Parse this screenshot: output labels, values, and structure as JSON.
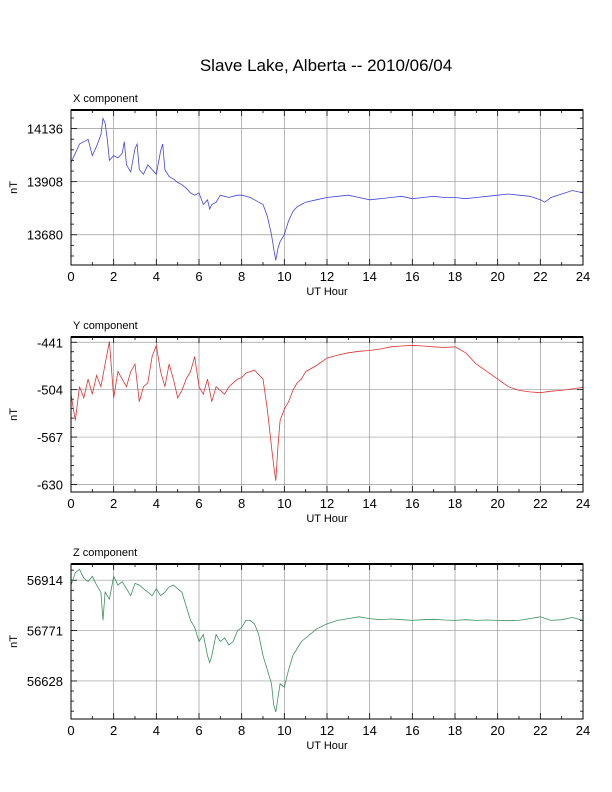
{
  "title": "Slave Lake, Alberta -- 2010/06/04",
  "chart_data": [
    {
      "type": "line",
      "title": "X component",
      "xlabel": "UT Hour",
      "ylabel": "nT",
      "xlim": [
        0,
        24
      ],
      "ylim": [
        13550,
        14216
      ],
      "xticks": [
        0,
        2,
        4,
        6,
        8,
        10,
        12,
        14,
        16,
        18,
        20,
        22,
        24
      ],
      "yticks": [
        13680,
        13908,
        14136
      ],
      "color": "#4444dd",
      "series": [
        {
          "x": [
            0,
            0.2,
            0.4,
            0.6,
            0.8,
            1.0,
            1.2,
            1.4,
            1.5,
            1.6,
            1.7,
            1.8,
            2.0,
            2.2,
            2.4,
            2.5,
            2.6,
            2.8,
            3.0,
            3.1,
            3.2,
            3.4,
            3.6,
            3.8,
            4.0,
            4.2,
            4.3,
            4.4,
            4.6,
            4.8,
            5.0,
            5.2,
            5.4,
            5.6,
            5.8,
            6.0,
            6.2,
            6.4,
            6.5,
            6.6,
            6.8,
            7.0,
            7.2,
            7.4,
            7.6,
            7.8,
            8.0,
            8.2,
            8.4,
            8.6,
            8.8,
            9.0,
            9.2,
            9.4,
            9.5,
            9.6,
            9.7,
            9.8,
            10.0,
            10.2,
            10.4,
            10.6,
            10.8,
            11.0,
            11.5,
            12.0,
            12.5,
            13.0,
            13.5,
            14.0,
            14.5,
            15.0,
            15.5,
            16.0,
            16.5,
            17.0,
            17.5,
            18.0,
            18.5,
            19.0,
            19.5,
            20.0,
            20.5,
            21.0,
            21.5,
            22.0,
            22.2,
            22.5,
            23.0,
            23.5,
            24.0
          ],
          "values": [
            13990,
            14030,
            14070,
            14080,
            14090,
            14020,
            14060,
            14110,
            14180,
            14160,
            14090,
            14000,
            14020,
            14010,
            14030,
            14080,
            13980,
            13950,
            14050,
            14070,
            13960,
            13940,
            13980,
            13960,
            13940,
            14040,
            14070,
            13960,
            13930,
            13920,
            13905,
            13895,
            13880,
            13860,
            13850,
            13860,
            13810,
            13830,
            13790,
            13810,
            13820,
            13850,
            13845,
            13840,
            13845,
            13850,
            13850,
            13845,
            13840,
            13830,
            13820,
            13810,
            13760,
            13680,
            13620,
            13570,
            13620,
            13650,
            13680,
            13740,
            13780,
            13800,
            13810,
            13820,
            13830,
            13840,
            13845,
            13850,
            13840,
            13830,
            13835,
            13840,
            13845,
            13835,
            13840,
            13845,
            13840,
            13840,
            13835,
            13840,
            13845,
            13850,
            13855,
            13850,
            13845,
            13830,
            13820,
            13840,
            13855,
            13870,
            13860
          ]
        }
      ]
    },
    {
      "type": "line",
      "title": "Y component",
      "xlabel": "UT Hour",
      "ylabel": "nT",
      "xlim": [
        0,
        24
      ],
      "ylim": [
        -640,
        -434
      ],
      "xticks": [
        0,
        2,
        4,
        6,
        8,
        10,
        12,
        14,
        16,
        18,
        20,
        22,
        24
      ],
      "yticks": [
        -630,
        -567,
        -504,
        -441
      ],
      "color": "#dd3333",
      "series": [
        {
          "x": [
            0,
            0.2,
            0.4,
            0.6,
            0.8,
            1.0,
            1.2,
            1.4,
            1.6,
            1.8,
            2.0,
            2.2,
            2.4,
            2.6,
            2.8,
            3.0,
            3.2,
            3.4,
            3.6,
            3.8,
            4.0,
            4.2,
            4.4,
            4.6,
            4.8,
            5.0,
            5.2,
            5.4,
            5.6,
            5.8,
            6.0,
            6.2,
            6.4,
            6.6,
            6.8,
            7.0,
            7.2,
            7.4,
            7.6,
            7.8,
            8.0,
            8.2,
            8.4,
            8.6,
            8.8,
            9.0,
            9.2,
            9.4,
            9.5,
            9.6,
            9.7,
            9.8,
            10.0,
            10.2,
            10.4,
            10.6,
            10.8,
            11.0,
            11.5,
            12.0,
            12.5,
            13.0,
            13.5,
            14.0,
            14.5,
            15.0,
            15.5,
            16.0,
            16.5,
            17.0,
            17.5,
            18.0,
            18.5,
            19.0,
            19.5,
            20.0,
            20.5,
            21.0,
            21.5,
            22.0,
            22.5,
            23.0,
            23.5,
            24.0
          ],
          "values": [
            -510,
            -545,
            -500,
            -515,
            -490,
            -510,
            -485,
            -500,
            -470,
            -440,
            -515,
            -480,
            -490,
            -500,
            -480,
            -470,
            -520,
            -500,
            -495,
            -460,
            -445,
            -480,
            -500,
            -470,
            -490,
            -515,
            -505,
            -490,
            -480,
            -460,
            -500,
            -510,
            -490,
            -520,
            -500,
            -505,
            -510,
            -500,
            -495,
            -490,
            -488,
            -482,
            -480,
            -478,
            -484,
            -490,
            -530,
            -580,
            -605,
            -625,
            -580,
            -545,
            -530,
            -520,
            -505,
            -495,
            -490,
            -480,
            -472,
            -462,
            -458,
            -455,
            -453,
            -452,
            -450,
            -447,
            -446,
            -445,
            -446,
            -447,
            -448,
            -447,
            -455,
            -470,
            -480,
            -490,
            -500,
            -505,
            -507,
            -508,
            -506,
            -505,
            -503,
            -501
          ]
        }
      ]
    },
    {
      "type": "line",
      "title": "Z component",
      "xlabel": "UT Hour",
      "ylabel": "nT",
      "xlim": [
        0,
        24
      ],
      "ylim": [
        56520,
        56960
      ],
      "xticks": [
        0,
        2,
        4,
        6,
        8,
        10,
        12,
        14,
        16,
        18,
        20,
        22,
        24
      ],
      "yticks": [
        56628,
        56771,
        56914
      ],
      "color": "#3f8f5f",
      "series": [
        {
          "x": [
            0,
            0.2,
            0.4,
            0.6,
            0.8,
            1.0,
            1.2,
            1.4,
            1.5,
            1.6,
            1.8,
            2.0,
            2.2,
            2.4,
            2.6,
            2.8,
            3.0,
            3.2,
            3.4,
            3.6,
            3.8,
            4.0,
            4.2,
            4.4,
            4.6,
            4.8,
            5.0,
            5.2,
            5.4,
            5.6,
            5.8,
            6.0,
            6.2,
            6.4,
            6.5,
            6.6,
            6.8,
            7.0,
            7.2,
            7.4,
            7.6,
            7.8,
            8.0,
            8.2,
            8.4,
            8.6,
            8.8,
            9.0,
            9.2,
            9.4,
            9.5,
            9.6,
            9.7,
            9.8,
            10.0,
            10.2,
            10.4,
            10.6,
            10.8,
            11.0,
            11.5,
            12.0,
            12.5,
            13.0,
            13.5,
            14.0,
            14.5,
            15.0,
            15.5,
            16.0,
            16.5,
            17.0,
            17.5,
            18.0,
            18.5,
            19.0,
            19.5,
            20.0,
            20.5,
            21.0,
            21.5,
            22.0,
            22.5,
            23.0,
            23.5,
            24.0
          ],
          "values": [
            56900,
            56935,
            56945,
            56920,
            56910,
            56925,
            56900,
            56880,
            56800,
            56880,
            56860,
            56925,
            56900,
            56910,
            56890,
            56870,
            56905,
            56900,
            56890,
            56880,
            56870,
            56890,
            56870,
            56880,
            56895,
            56900,
            56890,
            56880,
            56840,
            56800,
            56780,
            56740,
            56760,
            56700,
            56680,
            56700,
            56760,
            56740,
            56750,
            56730,
            56740,
            56770,
            56780,
            56800,
            56800,
            56790,
            56760,
            56700,
            56660,
            56620,
            56560,
            56540,
            56580,
            56620,
            56610,
            56660,
            56700,
            56720,
            56740,
            56750,
            56775,
            56790,
            56800,
            56805,
            56810,
            56805,
            56802,
            56804,
            56802,
            56800,
            56802,
            56803,
            56801,
            56800,
            56802,
            56800,
            56801,
            56800,
            56799,
            56800,
            56805,
            56810,
            56800,
            56802,
            56808,
            56800
          ]
        }
      ]
    }
  ]
}
